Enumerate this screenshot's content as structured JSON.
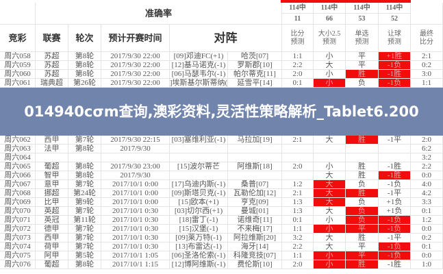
{
  "banner": {
    "title": "014940cσm查询,澳彩资料,灵活性策略解析_Tablet6.200"
  },
  "accuracy": {
    "label": "准确率",
    "values": [
      {
        "top": "114中",
        "bottom": "11"
      },
      {
        "top": "114中",
        "bottom": "66"
      },
      {
        "top": "114中",
        "bottom": "53"
      },
      {
        "top": "114中",
        "bottom": "52"
      }
    ]
  },
  "headers": [
    "竞彩",
    "联赛",
    "轮次",
    "预计开赛时间",
    "对阵",
    "比分\n预测",
    "大小2.5\n预测",
    "单选\n预测",
    "让球\n预测",
    "最终\n比分"
  ],
  "colors": {
    "highlight": "#f20d0d"
  },
  "rows": [
    {
      "id": "周六058",
      "league": "苏超",
      "round": "第8轮",
      "time": "2017/9/30 22:00",
      "home": "[09]邓迪FC(+1)",
      "away": "哈茨[07]",
      "score": "1:1",
      "ou": "小",
      "pick": "平",
      "hcp": "+1胜",
      "final": "2:1",
      "red": [
        0,
        0,
        1
      ]
    },
    {
      "id": "周六059",
      "league": "苏超",
      "round": "第8轮",
      "time": "2017/9/30 22:00",
      "home": "[12]基马诺克(-1)",
      "away": "罗斯郡[10]",
      "score": "2:2",
      "ou": "大",
      "pick": "平",
      "hcp": "-1负",
      "final": "0:2",
      "red": [
        0,
        0,
        1
      ]
    },
    {
      "id": "周六060",
      "league": "苏超",
      "round": "第8轮",
      "time": "2017/9/30 22:00",
      "home": "[06]马瑟韦尔(-1)",
      "away": "帕尔蒂克[11]",
      "score": "2:0",
      "ou": "小",
      "pick": "胜",
      "hcp": "-1胜",
      "final": "3:0",
      "red": [
        0,
        1,
        1
      ]
    },
    {
      "id": "周六061",
      "league": "瑞典超",
      "round": "第26轮",
      "time": "2017/9/30 22:00",
      "home": "]埃斯基尔斯蒂纳(",
      "away": "延雪平[14]",
      "score": "0:1",
      "ou": "小",
      "pick": "负",
      "hcp": "-1负",
      "final": "1:1",
      "red": [
        1,
        0,
        1
      ]
    },
    {
      "id": "周六062",
      "league": "西甲",
      "round": "第7轮",
      "time": "2017/9/30 22:15",
      "home": "[03]塞维利亚(-1)",
      "away": "马拉加[19]",
      "score": "2:1",
      "ou": "大",
      "pick": "胜",
      "hcp": "-1平",
      "final": "2:0",
      "red": [
        0,
        1,
        0
      ]
    },
    {
      "id": "周六063",
      "league": "法甲",
      "round": "第8轮",
      "time": "2017/9/30",
      "home": "",
      "away": "",
      "score": "",
      "ou": "",
      "pick": "",
      "hcp": "",
      "final": "6:2",
      "red": [
        0,
        0,
        0
      ]
    },
    {
      "id": "周六064",
      "league": "",
      "round": "",
      "time": "",
      "home": "",
      "away": "",
      "score": "",
      "ou": "",
      "pick": "",
      "hcp": "",
      "final": "3:2",
      "red": [
        0,
        0,
        0
      ]
    },
    {
      "id": "周六065",
      "league": "葡超",
      "round": "第8轮",
      "time": "2017/9/30 23:00",
      "home": "[15]波尔蒂芒",
      "away": "阿维斯[18]",
      "score": "2:0",
      "ou": "小",
      "pick": "胜",
      "hcp": "-1胜",
      "final": "2:2",
      "red": [
        0,
        0,
        0
      ]
    },
    {
      "id": "周六066",
      "league": "智甲",
      "round": "第8轮",
      "time": "2017/9/30",
      "home": "",
      "away": "",
      "score": "",
      "ou": "大",
      "pick": "胜",
      "hcp": "-1胜",
      "final": "0:0",
      "red": [
        0,
        0,
        1
      ]
    },
    {
      "id": "周六067",
      "league": "意甲",
      "round": "第7轮",
      "time": "2017/10/1 0:00",
      "home": "[17]乌迪内斯(-1)",
      "away": "桑普[07]",
      "score": "1:2",
      "ou": "大",
      "pick": "负",
      "hcp": "-1负",
      "final": "4:0",
      "red": [
        1,
        0,
        0
      ]
    },
    {
      "id": "周六068",
      "league": "挪超",
      "round": "第24轮",
      "time": "2017/10/1 0:00",
      "home": "[09]斯塔贝克(-1)",
      "away": "瓦勒伦加[12]",
      "score": "2:1",
      "ou": "大",
      "pick": "胜",
      "hcp": "-1平",
      "final": "4:2",
      "red": [
        1,
        1,
        0
      ]
    },
    {
      "id": "周六069",
      "league": "比甲",
      "round": "第9轮",
      "time": "2017/10/1 0:00",
      "home": "[15]欧本(+1)",
      "away": "亨克[09]",
      "score": "1:3",
      "ou": "大",
      "pick": "负",
      "hcp": "+1负",
      "final": "3:3",
      "red": [
        1,
        0,
        0
      ]
    },
    {
      "id": "周六070",
      "league": "英超",
      "round": "第7轮",
      "time": "2017/10/1 0:30",
      "home": "[03]切尔西(+1)",
      "away": "曼城[01]",
      "score": "1:3",
      "ou": "大",
      "pick": "负",
      "hcp": "+1负",
      "final": "0:1",
      "red": [
        0,
        1,
        0
      ]
    },
    {
      "id": "周六071",
      "league": "英冠",
      "round": "第11轮",
      "time": "2017/10/1 0:30",
      "home": "[18]雷丁(-1)",
      "away": "诺维奇[11]",
      "score": "0:1",
      "ou": "小",
      "pick": "负",
      "hcp": "-1负",
      "final": "1:2",
      "red": [
        0,
        1,
        1
      ]
    },
    {
      "id": "周六072",
      "league": "德甲",
      "round": "第7轮",
      "time": "2017/10/1 0:30",
      "home": "[15]汉堡(-1)",
      "away": "不来梅[17]",
      "score": "1:1",
      "ou": "小",
      "pick": "平",
      "hcp": "-1负",
      "final": "0:0",
      "red": [
        1,
        1,
        1
      ]
    },
    {
      "id": "周六073",
      "league": "西甲",
      "round": "第7轮",
      "time": "2017/10/1 0:30",
      "home": "[09]莱万特(-1)",
      "away": "阿拉维斯[20]",
      "score": "3:2",
      "ou": "大",
      "pick": "胜",
      "hcp": "-1平",
      "final": "0:2",
      "red": [
        0,
        0,
        0
      ]
    },
    {
      "id": "周六074",
      "league": "荷甲",
      "round": "第7轮",
      "time": "2017/10/1 0:30",
      "home": "[13]布雷达(-1)",
      "away": "海牙[14]",
      "score": "2:2",
      "ou": "大",
      "pick": "平",
      "hcp": "-1负",
      "final": "0:1",
      "red": [
        0,
        0,
        1
      ]
    },
    {
      "id": "周六075",
      "league": "阿甲",
      "round": "第5轮",
      "time": "2017/10/1 1:05",
      "home": "[06]圣洛伦索(-1)",
      "away": "科隆竞技[07]",
      "score": "1:1",
      "ou": "小",
      "pick": "平",
      "hcp": "-1负",
      "final": "0:0",
      "red": [
        1,
        1,
        1
      ]
    },
    {
      "id": "周六076",
      "league": "葡超",
      "round": "第8轮",
      "time": "2017/10/1 1:15",
      "home": "[12]博阿维斯(-1)",
      "away": "费伦斯[10]",
      "score": "2:0",
      "ou": "小",
      "pick": "胜",
      "hcp": "-1胜",
      "final": "1:0",
      "red": [
        1,
        1,
        0
      ]
    }
  ]
}
